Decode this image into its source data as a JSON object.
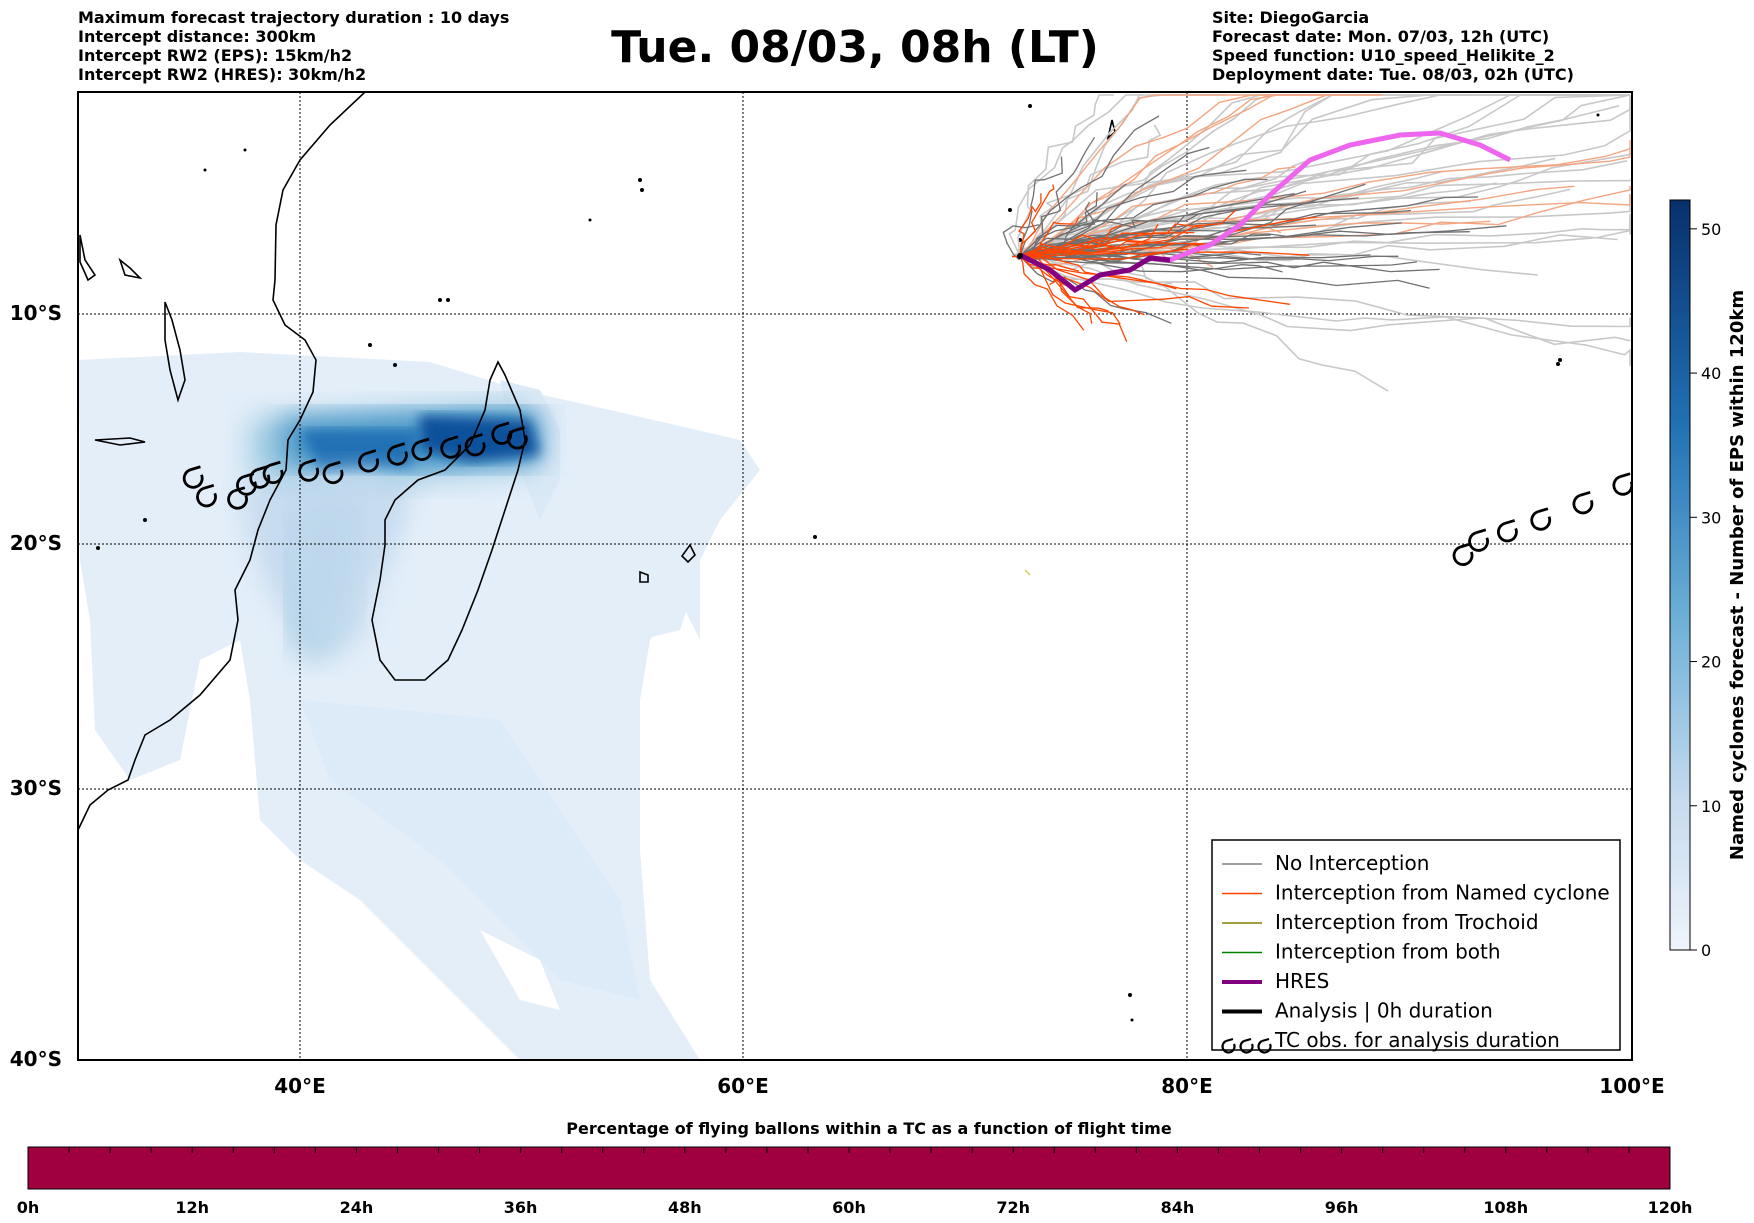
{
  "title": "Tue. 08/03, 08h (LT)",
  "header_left": [
    "Maximum forecast trajectory duration : 10 days",
    "Intercept distance: 300km",
    "Intercept RW2 (EPS):  15km/h2",
    "Intercept RW2 (HRES): 30km/h2"
  ],
  "header_right": [
    "Site: DiegoGarcia",
    "Forecast date: Mon. 07/03, 12h (UTC)",
    "Speed function: U10_speed_Helikite_2",
    "Deployment date: Tue. 08/03, 02h (UTC)"
  ],
  "map": {
    "lon_range": [
      30,
      100
    ],
    "lat_range": [
      -40,
      0
    ],
    "lon_ticks": [
      "40°E",
      "60°E",
      "80°E",
      "100°E"
    ],
    "lat_ticks": [
      "10°S",
      "20°S",
      "30°S",
      "40°S"
    ],
    "grid": true
  },
  "colorbar_right": {
    "label": "Named cyclones forecast - Number of EPS within 120km",
    "ticks": [
      "0",
      "10",
      "20",
      "30",
      "40",
      "50"
    ],
    "range": [
      0,
      52
    ],
    "colors": [
      "#e3eef9",
      "#08306b"
    ]
  },
  "legend": {
    "items": [
      {
        "label": "No Interception",
        "color": "#808080",
        "style": "thin",
        "icon": "line-swatch"
      },
      {
        "label": "Interception from Named cyclone",
        "color": "#ff4500",
        "style": "thin",
        "icon": "line-swatch"
      },
      {
        "label": "Interception from Trochoid",
        "color": "#808000",
        "style": "thin",
        "icon": "line-swatch"
      },
      {
        "label": "Interception from both",
        "color": "#008000",
        "style": "thin",
        "icon": "line-swatch"
      },
      {
        "label": "HRES",
        "color": "#800080",
        "style": "thick",
        "icon": "line-swatch"
      },
      {
        "label": "Analysis | 0h duration",
        "color": "#000000",
        "style": "thick",
        "icon": "line-swatch"
      },
      {
        "label": "TC obs. for analysis duration",
        "color": "#000000",
        "style": "cyclone",
        "icon": "cyclone-symbol-icon"
      }
    ]
  },
  "colorbar_bottom": {
    "title": "Percentage of flying ballons within a TC as a function of flight time",
    "ticks": [
      "0h",
      "12h",
      "24h",
      "36h",
      "48h",
      "60h",
      "72h",
      "84h",
      "96h",
      "108h",
      "120h"
    ],
    "fill_color": "#a0003e"
  },
  "tc_observations": [
    {
      "name": "west-channel-track",
      "points": [
        [
          35.2,
          -17.2
        ],
        [
          35.8,
          -18.0
        ],
        [
          37.2,
          -18.1
        ],
        [
          37.6,
          -17.5
        ],
        [
          38.2,
          -17.2
        ],
        [
          38.8,
          -17.0
        ],
        [
          40.4,
          -16.9
        ],
        [
          41.5,
          -17.0
        ],
        [
          43.1,
          -16.5
        ],
        [
          44.4,
          -16.2
        ],
        [
          45.5,
          -16.0
        ],
        [
          46.8,
          -15.9
        ],
        [
          47.9,
          -15.8
        ],
        [
          49.1,
          -15.3
        ],
        [
          49.8,
          -15.5
        ]
      ]
    },
    {
      "name": "east-track",
      "points": [
        [
          92.4,
          -20.5
        ],
        [
          93.1,
          -19.9
        ],
        [
          94.4,
          -19.5
        ],
        [
          95.9,
          -19.0
        ],
        [
          97.8,
          -18.3
        ],
        [
          99.6,
          -17.5
        ]
      ]
    }
  ]
}
